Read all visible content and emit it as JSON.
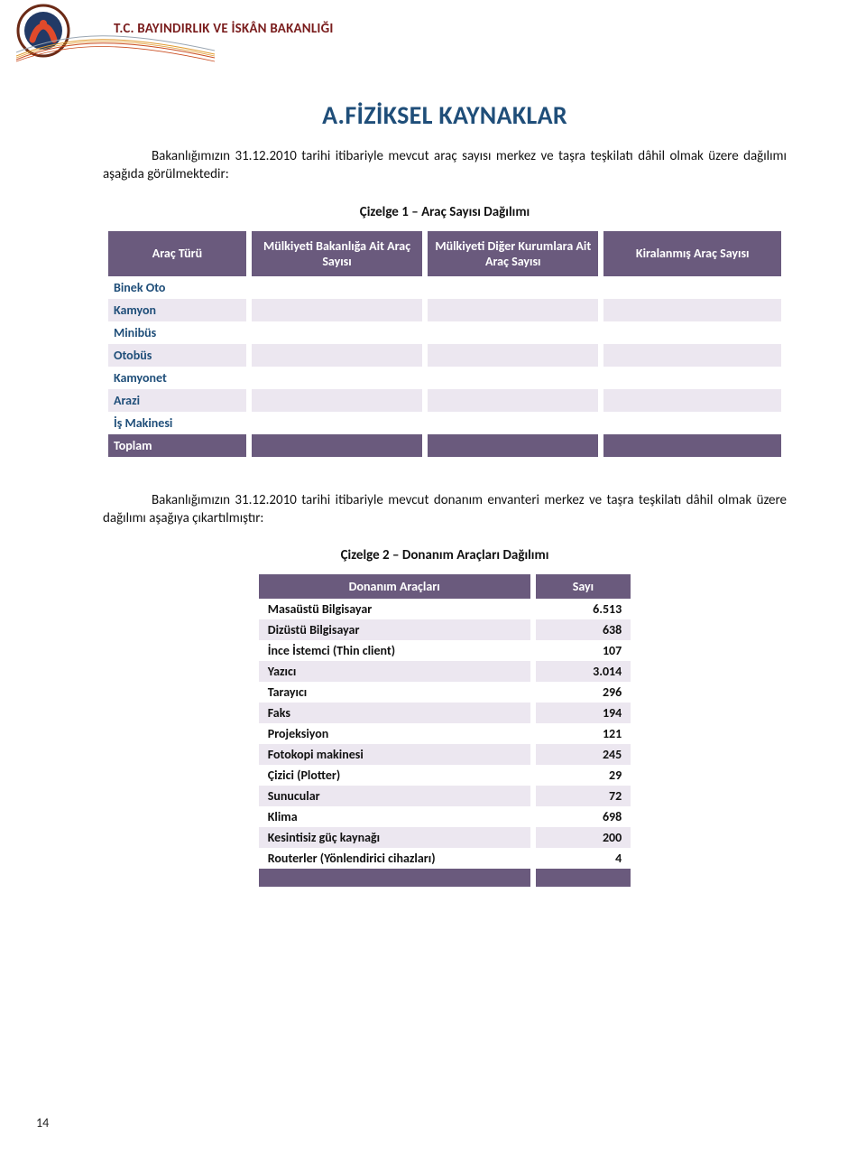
{
  "colors": {
    "section_title": "#1f4e79",
    "ministry_title": "#7a1d1d",
    "header_bg": "#6a5a7d",
    "header_fg": "#ffffff",
    "alt_row_bg": "#ece7f0",
    "rowhead_fg": "#1f4e79",
    "wave1": "#c94b1e",
    "wave2": "#e09a2e",
    "wave3": "#9aa6b2"
  },
  "header": {
    "ministry": "T.C. BAYINDIRLIK VE İSKÂN BAKANLIĞI"
  },
  "section_title": "A.FİZİKSEL KAYNAKLAR",
  "paragraph1": "Bakanlığımızın 31.12.2010 tarihi itibariyle mevcut araç sayısı merkez ve taşra teşkilatı dâhil olmak üzere dağılımı aşağıda görülmektedir:",
  "table1": {
    "caption": "Çizelge 1 – Araç Sayısı Dağılımı",
    "columns": [
      "Araç Türü",
      "Mülkiyeti Bakanlığa Ait Araç Sayısı",
      "Mülkiyeti Diğer Kurumlara Ait Araç Sayısı",
      "Kiralanmış Araç Sayısı"
    ],
    "rows": [
      "Binek Oto",
      "Kamyon",
      "Minibüs",
      "Otobüs",
      "Kamyonet",
      "Arazi",
      "İş Makinesi"
    ],
    "total_label": "Toplam"
  },
  "paragraph2": "Bakanlığımızın 31.12.2010 tarihi itibariyle mevcut donanım envanteri merkez ve taşra teşkilatı dâhil olmak üzere dağılımı aşağıya çıkartılmıştır:",
  "table2": {
    "caption": "Çizelge 2 – Donanım Araçları Dağılımı",
    "columns": [
      "Donanım Araçları",
      "Sayı"
    ],
    "rows": [
      {
        "name": "Masaüstü Bilgisayar",
        "value": "6.513"
      },
      {
        "name": "Dizüstü Bilgisayar",
        "value": "638"
      },
      {
        "name": "İnce İstemci (Thin client)",
        "value": "107"
      },
      {
        "name": "Yazıcı",
        "value": "3.014"
      },
      {
        "name": "Tarayıcı",
        "value": "296"
      },
      {
        "name": "Faks",
        "value": "194"
      },
      {
        "name": "Projeksiyon",
        "value": "121"
      },
      {
        "name": "Fotokopi makinesi",
        "value": "245"
      },
      {
        "name": "Çizici (Plotter)",
        "value": "29"
      },
      {
        "name": "Sunucular",
        "value": "72"
      },
      {
        "name": "Klima",
        "value": "698"
      },
      {
        "name": "Kesintisiz güç kaynağı",
        "value": "200"
      },
      {
        "name": "Routerler (Yönlendirici cihazları)",
        "value": "4"
      }
    ]
  },
  "page_number": "14"
}
